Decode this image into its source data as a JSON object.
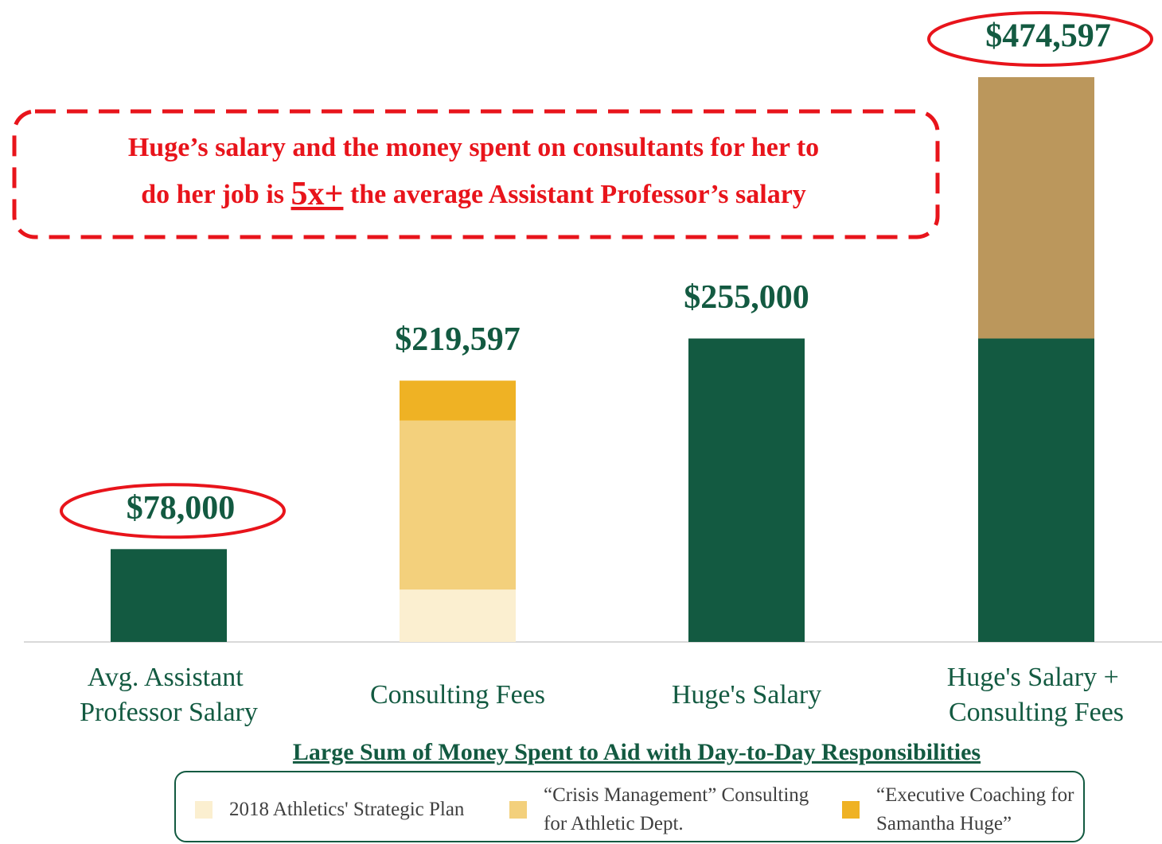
{
  "chart_data": {
    "type": "stacked_bar",
    "categories": [
      "Avg. Assistant Professor Salary",
      "Consulting Fees",
      "Huge's Salary",
      "Huge's Salary + Consulting Fees"
    ],
    "series": [
      {
        "color": "#135a41",
        "values": [
          78000,
          null,
          255000,
          255000
        ]
      },
      {
        "name": "2018 Athletics' Strategic Plan",
        "color": "#fbefd0",
        "values": [
          null,
          44000,
          null,
          null
        ]
      },
      {
        "name": "“Crisis Management” Consulting for Athletic Dept.",
        "color": "#f3d07c",
        "values": [
          null,
          142000,
          null,
          null
        ]
      },
      {
        "name": "“Executive Coaching for Samantha Huge”",
        "color": "#efb224",
        "values": [
          null,
          33597,
          null,
          null
        ]
      },
      {
        "color": "#bb975c",
        "values": [
          null,
          null,
          null,
          219597
        ]
      }
    ],
    "totals": [
      78000,
      219597,
      255000,
      474597
    ],
    "value_labels": [
      "$78,000",
      "$219,597",
      "$255,000",
      "$474,597"
    ],
    "circled": [
      true,
      false,
      false,
      true
    ],
    "ylim": [
      0,
      500000
    ],
    "xlabel": "Large Sum of Money Spent to Aid with Day-to-Day Responsibilities",
    "annotation": {
      "line1": "Huge’s salary and the money spent on consultants for her to",
      "line2_before": "do her job is ",
      "emphasis": "5x+",
      "line2_after": " the average Assistant Professor’s salary"
    }
  }
}
